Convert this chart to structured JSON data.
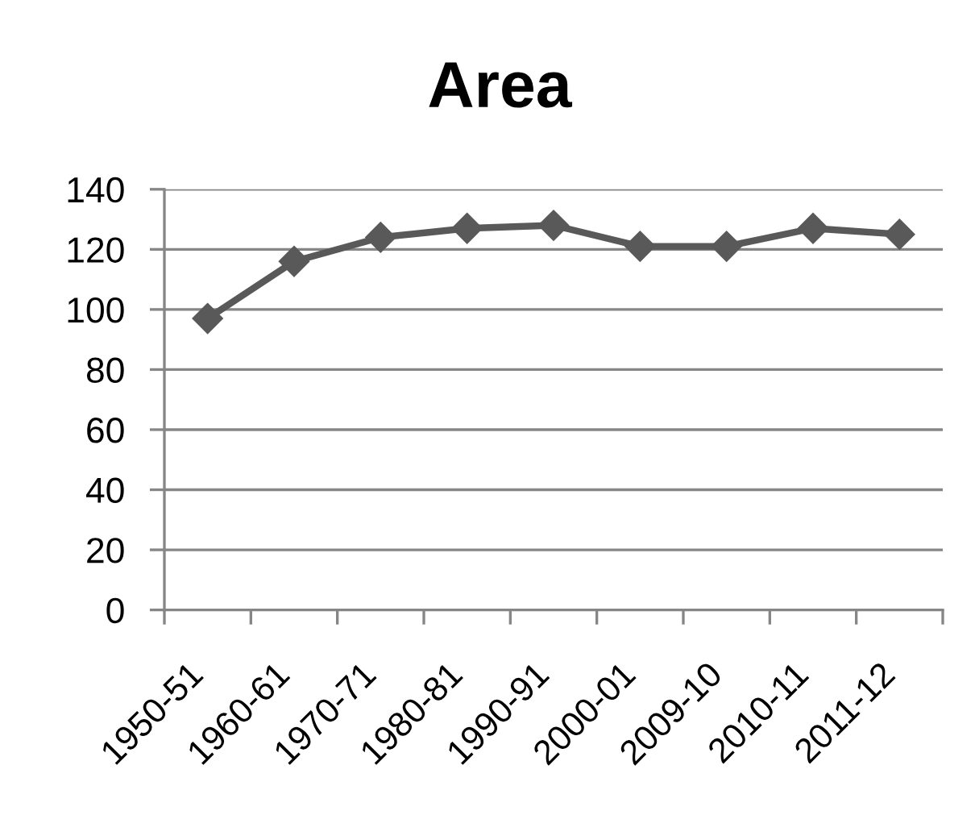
{
  "chart_data": {
    "type": "line",
    "title": "Area",
    "categories": [
      "1950-51",
      "1960-61",
      "1970-71",
      "1980-81",
      "1990-91",
      "2000-01",
      "2009-10",
      "2010-11",
      "2011-12"
    ],
    "series": [
      {
        "color": "#595959",
        "values": [
          97,
          116,
          124,
          127,
          128,
          121,
          121,
          127,
          125
        ]
      }
    ],
    "ylim": [
      0,
      140
    ],
    "yticks": [
      0,
      20,
      40,
      60,
      80,
      100,
      120,
      140
    ],
    "grid": "y",
    "marker": "diamond",
    "line_style": "solid"
  }
}
